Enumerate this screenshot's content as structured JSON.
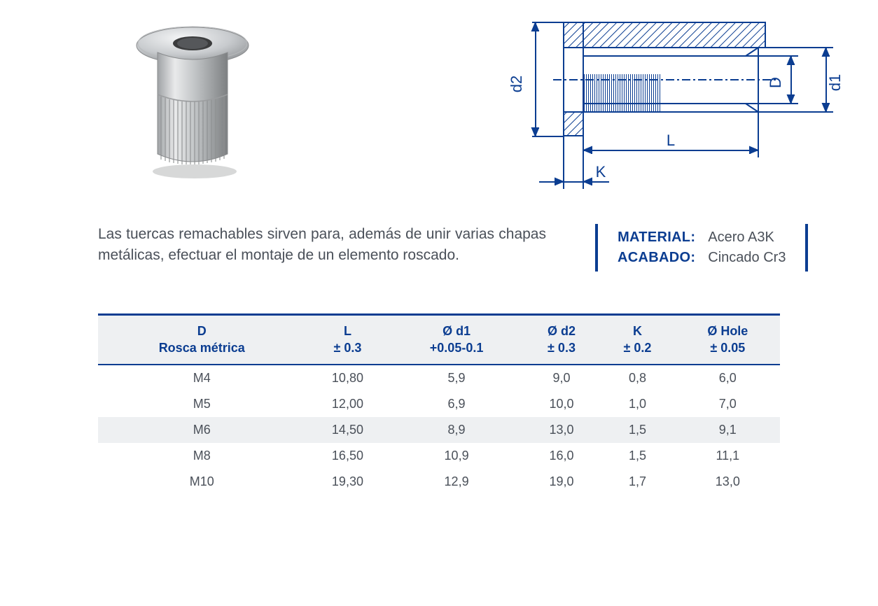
{
  "description": "Las tuercas remachables sirven para, además de unir varias chapas metálicas, efectuar el montaje de un elemento roscado.",
  "info": {
    "material_label": "MATERIAL:",
    "material_value": "Acero A3K",
    "finish_label": "ACABADO:",
    "finish_value": "Cincado Cr3"
  },
  "diagram": {
    "labels": {
      "d2": "d2",
      "d1": "d1",
      "D": "D",
      "L": "L",
      "K": "K"
    },
    "stroke": "#0b3d91",
    "stroke_width": 2
  },
  "table": {
    "header_bg": "#eef0f2",
    "header_color": "#0b3d91",
    "border_color": "#0b3d91",
    "row_alt_bg": "#eef0f2",
    "columns": [
      {
        "line1": "D",
        "line2": "Rosca métrica"
      },
      {
        "line1": "L",
        "line2": "± 0.3"
      },
      {
        "line1": "Ø d1",
        "line2": "+0.05-0.1"
      },
      {
        "line1": "Ø d2",
        "line2": "± 0.3"
      },
      {
        "line1": "K",
        "line2": "± 0.2"
      },
      {
        "line1": "Ø Hole",
        "line2": "± 0.05"
      }
    ],
    "rows": [
      [
        "M4",
        "10,80",
        "5,9",
        "9,0",
        "0,8",
        "6,0"
      ],
      [
        "M5",
        "12,00",
        "6,9",
        "10,0",
        "1,0",
        "7,0"
      ],
      [
        "M6",
        "14,50",
        "8,9",
        "13,0",
        "1,5",
        "9,1"
      ],
      [
        "M8",
        "16,50",
        "10,9",
        "16,0",
        "1,5",
        "11,1"
      ],
      [
        "M10",
        "19,30",
        "12,9",
        "19,0",
        "1,7",
        "13,0"
      ]
    ]
  }
}
